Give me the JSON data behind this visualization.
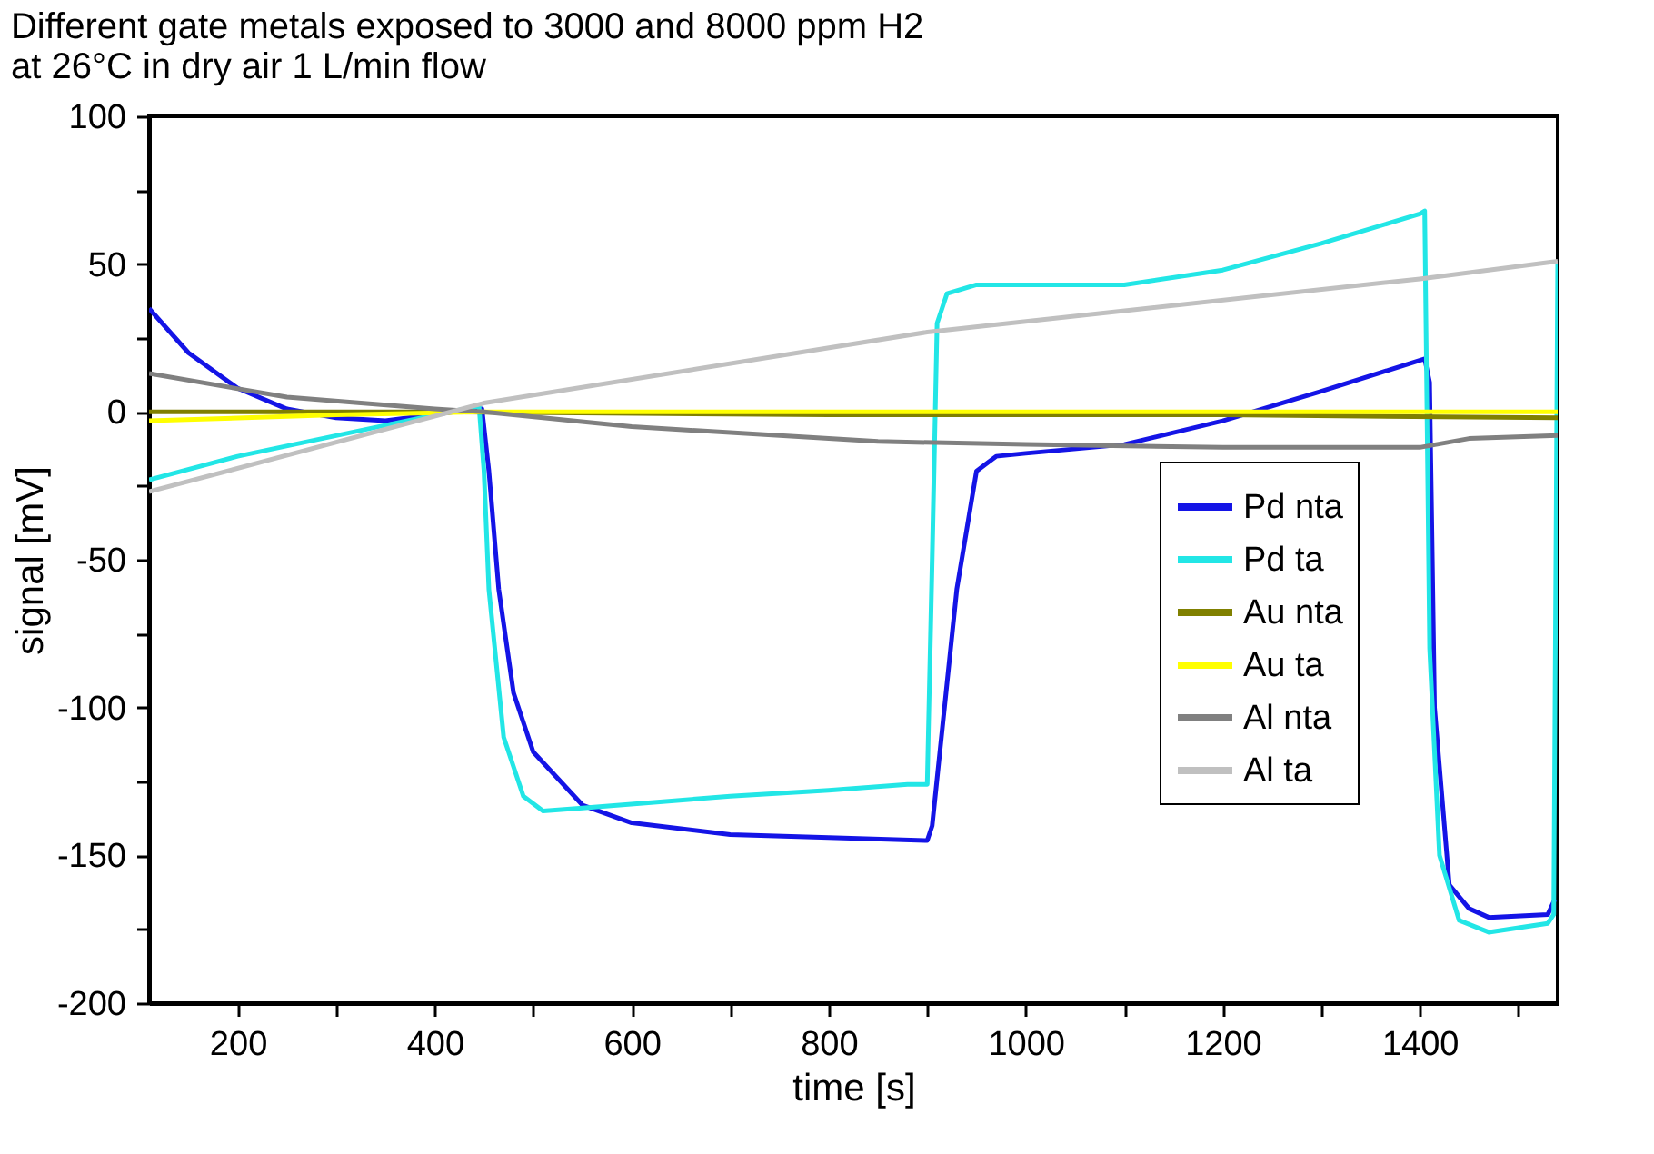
{
  "chart_data": {
    "type": "line",
    "title": [
      "Different gate metals exposed to 3000 and 8000 ppm H2",
      "at 26°C in dry air 1 L/min flow"
    ],
    "xlabel": "time [s]",
    "ylabel": "signal [mV]",
    "xlim": [
      110,
      1540
    ],
    "ylim": [
      -200,
      100
    ],
    "xticks": [
      200,
      {
        "value": 300,
        "label": null
      },
      400,
      {
        "value": 500,
        "label": null
      },
      600,
      {
        "value": 700,
        "label": null
      },
      800,
      {
        "value": 900,
        "label": null
      },
      1000,
      {
        "value": 1100,
        "label": null
      },
      1200,
      {
        "value": 1300,
        "label": null
      },
      1400,
      {
        "value": 1500,
        "label": null
      }
    ],
    "yticks": [
      -200,
      {
        "value": -175,
        "label": null
      },
      -150,
      {
        "value": -125,
        "label": null
      },
      -100,
      {
        "value": -75,
        "label": null
      },
      -50,
      {
        "value": -25,
        "label": null
      },
      0,
      {
        "value": 25,
        "label": null
      },
      50,
      {
        "value": 75,
        "label": null
      },
      100
    ],
    "grid": false,
    "legend": "bottom right",
    "marker": "none",
    "line_style": "solid",
    "series": [
      {
        "name": "Pd nta",
        "color": "#1414e6",
        "x": [
          110,
          150,
          200,
          250,
          300,
          350,
          420,
          448,
          455,
          465,
          480,
          500,
          550,
          600,
          700,
          800,
          900,
          905,
          930,
          950,
          970,
          1000,
          1100,
          1200,
          1300,
          1405,
          1410,
          1415,
          1430,
          1450,
          1470,
          1530,
          1537
        ],
        "values": [
          35,
          20,
          8,
          1,
          -2,
          -3,
          0,
          1,
          -20,
          -60,
          -95,
          -115,
          -133,
          -139,
          -143,
          -144,
          -145,
          -140,
          -60,
          -20,
          -15,
          -14,
          -11,
          -3,
          7,
          18,
          10,
          -100,
          -160,
          -168,
          -171,
          -170,
          -165
        ]
      },
      {
        "name": "Pd ta",
        "color": "#22e6e6",
        "x": [
          110,
          200,
          300,
          400,
          445,
          450,
          455,
          470,
          490,
          510,
          550,
          700,
          800,
          880,
          900,
          905,
          910,
          920,
          950,
          1100,
          1200,
          1300,
          1400,
          1405,
          1410,
          1420,
          1440,
          1470,
          1530,
          1536,
          1540
        ],
        "values": [
          -23,
          -15,
          -8,
          -1,
          2,
          -20,
          -60,
          -110,
          -130,
          -135,
          -134,
          -130,
          -128,
          -126,
          -126,
          -50,
          30,
          40,
          43,
          43,
          48,
          57,
          67,
          68,
          -80,
          -150,
          -172,
          -176,
          -173,
          -170,
          50
        ]
      },
      {
        "name": "Au nta",
        "color": "#808000",
        "x": [
          110,
          400,
          800,
          1200,
          1540
        ],
        "values": [
          0,
          0,
          -1,
          -1,
          -2
        ]
      },
      {
        "name": "Au ta",
        "color": "#ffff00",
        "x": [
          110,
          300,
          450,
          1000,
          1540
        ],
        "values": [
          -3,
          -1,
          0,
          0,
          0
        ]
      },
      {
        "name": "Al nta",
        "color": "#808080",
        "x": [
          110,
          250,
          400,
          450,
          600,
          850,
          1000,
          1200,
          1400,
          1450,
          1540
        ],
        "values": [
          13,
          5,
          1,
          0,
          -5,
          -10,
          -11,
          -12,
          -12,
          -9,
          -8
        ]
      },
      {
        "name": "Al ta",
        "color": "#c0c0c0",
        "x": [
          110,
          450,
          900,
          1400,
          1540
        ],
        "values": [
          -27,
          3,
          27,
          45,
          51
        ]
      }
    ]
  }
}
